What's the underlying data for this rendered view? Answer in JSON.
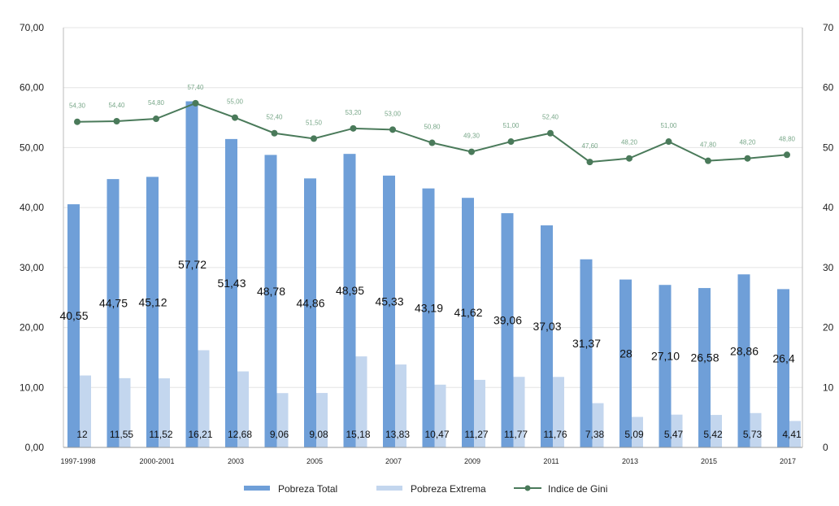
{
  "chart_data": {
    "type": "bar",
    "title": "",
    "xlabel": "",
    "ylabel": "",
    "x_tick_labels": [
      "1997-1998",
      "",
      "2000-2001",
      "",
      "2003",
      "",
      "2005",
      "",
      "2007",
      "",
      "2009",
      "",
      "2011",
      "",
      "2013",
      "",
      "2015",
      "",
      "2017"
    ],
    "left_axis": {
      "ylim": [
        0,
        70
      ],
      "ticks": [
        "0,00",
        "10,00",
        "20,00",
        "30,00",
        "40,00",
        "50,00",
        "60,00",
        "70,00"
      ]
    },
    "right_axis": {
      "ylim": [
        0,
        70
      ],
      "ticks": [
        "0",
        "10",
        "20",
        "30",
        "40",
        "50",
        "60",
        "70"
      ]
    },
    "series": [
      {
        "name": "Pobreza Total",
        "kind": "bar",
        "color": "#6f9fd8",
        "values": [
          40.55,
          44.75,
          45.12,
          57.72,
          51.43,
          48.78,
          44.86,
          48.95,
          45.33,
          43.19,
          41.62,
          39.06,
          37.03,
          31.37,
          28,
          27.1,
          26.58,
          28.86,
          26.4
        ],
        "labels": [
          "40,55",
          "44,75",
          "45,12",
          "57,72",
          "51,43",
          "48,78",
          "44,86",
          "48,95",
          "45,33",
          "43,19",
          "41,62",
          "39,06",
          "37,03",
          "31,37",
          "28",
          "27,10",
          "26,58",
          "28,86",
          "26,4"
        ]
      },
      {
        "name": "Pobreza Extrema",
        "kind": "bar",
        "color": "#c3d6ee",
        "values": [
          12,
          11.55,
          11.52,
          16.21,
          12.68,
          9.06,
          9.08,
          15.18,
          13.83,
          10.47,
          11.27,
          11.77,
          11.76,
          7.38,
          5.09,
          5.47,
          5.42,
          5.73,
          4.41
        ],
        "labels": [
          "12",
          "11,55",
          "11,52",
          "16,21",
          "12,68",
          "9,06",
          "9,08",
          "15,18",
          "13,83",
          "10,47",
          "11,27",
          "11,77",
          "11,76",
          "7,38",
          "5,09",
          "5,47",
          "5,42",
          "5,73",
          "4,41"
        ]
      },
      {
        "name": "Indice de Gini",
        "kind": "line",
        "axis": "right",
        "color": "#4a7a5a",
        "values": [
          54.3,
          54.4,
          54.8,
          57.4,
          55.0,
          52.4,
          51.5,
          53.2,
          53.0,
          50.8,
          49.3,
          51.0,
          52.4,
          47.6,
          48.2,
          51.0,
          47.8,
          48.2,
          48.8
        ],
        "labels": [
          "54,30",
          "54,40",
          "54,80",
          "57,40",
          "55,00",
          "52,40",
          "51,50",
          "53,20",
          "53,00",
          "50,80",
          "49,30",
          "51,00",
          "52,40",
          "47,60",
          "48,20",
          "51,00",
          "47,80",
          "48,20",
          "48,80"
        ]
      }
    ],
    "grid": true,
    "legend_position": "bottom-center"
  }
}
